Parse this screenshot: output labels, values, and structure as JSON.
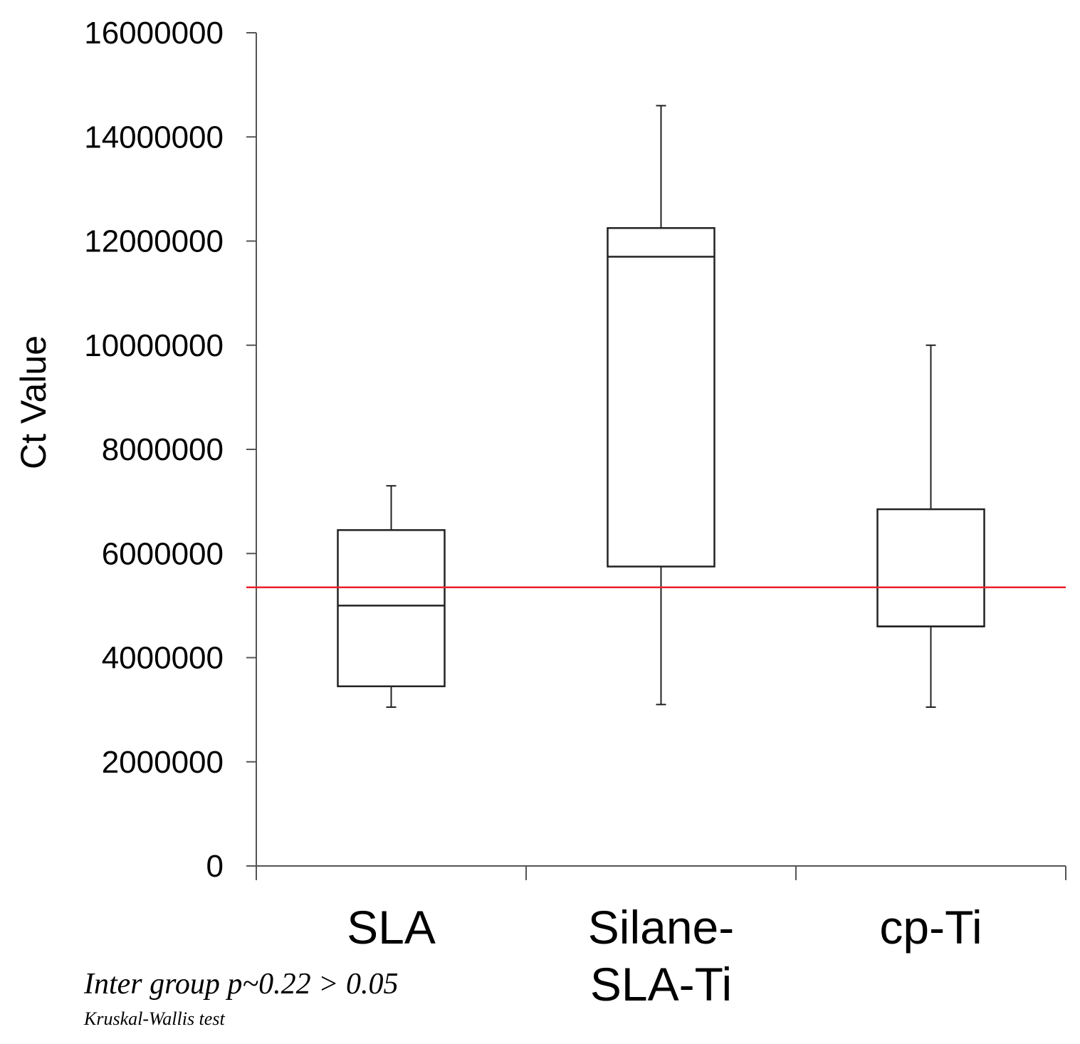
{
  "chart_data": {
    "type": "boxplot",
    "ylabel": "Ct Value",
    "ylim": [
      0,
      16000000
    ],
    "yticks": [
      "0",
      "2000000",
      "4000000",
      "6000000",
      "8000000",
      "10000000",
      "12000000",
      "14000000",
      "16000000"
    ],
    "categories": [
      {
        "label_lines": [
          "SLA"
        ],
        "whisker_low": 3050000,
        "q1": 3450000,
        "median": 5000000,
        "q3": 6450000,
        "whisker_high": 7300000
      },
      {
        "label_lines": [
          "Silane-",
          "SLA-Ti"
        ],
        "whisker_low": 3100000,
        "q1": 5750000,
        "median": 11700000,
        "q3": 12250000,
        "whisker_high": 14600000
      },
      {
        "label_lines": [
          "cp-Ti"
        ],
        "whisker_low": 3050000,
        "q1": 4600000,
        "median": 4600000,
        "q3": 6850000,
        "whisker_high": 10000000
      }
    ],
    "reference_line": {
      "value": 5350000,
      "color": "#e8232b"
    },
    "colors": {
      "axis": "#555555",
      "box": "#222222",
      "text": "#000000"
    },
    "annotations": {
      "stat_line": "Inter group p~0.22 > 0.05",
      "test_name": "Kruskal-Wallis test"
    }
  }
}
